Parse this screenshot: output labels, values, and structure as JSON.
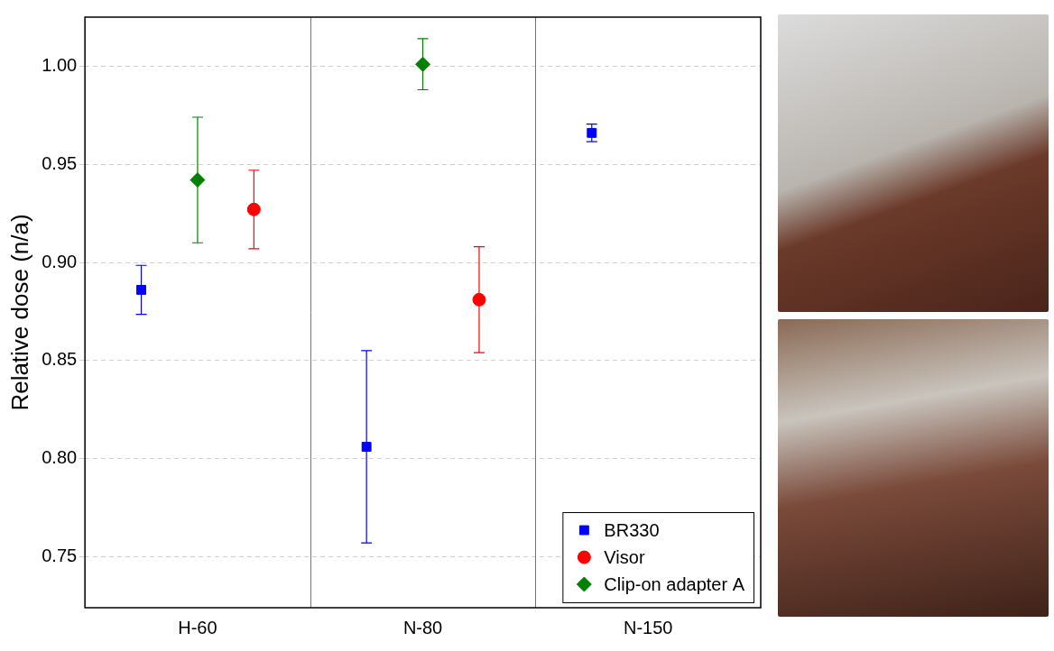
{
  "chart_data": {
    "type": "scatter",
    "y_label": "Relative dose (n/a)",
    "categories": [
      "H-60",
      "N-80",
      "N-150"
    ],
    "series": [
      {
        "name": "BR330",
        "color": "#0000ff",
        "marker": "square",
        "values": [
          0.886,
          0.806,
          0.966
        ],
        "errors": [
          0.0125,
          0.049,
          0.0045
        ]
      },
      {
        "name": "Visor",
        "color": "#ff0000",
        "marker": "circle",
        "values": [
          0.927,
          0.881,
          null
        ],
        "errors": [
          0.02,
          0.027,
          null
        ]
      },
      {
        "name": "Clip-on adapter A",
        "color": "#008000",
        "marker": "diamond",
        "values": [
          0.942,
          1.001,
          null
        ],
        "errors": [
          0.032,
          0.013,
          null
        ]
      }
    ],
    "ylim": [
      0.724,
      1.025
    ],
    "yticks": [
      0.75,
      {
        "value": 0.8,
        "label": "0.80"
      },
      0.85,
      {
        "value": 0.9,
        "label": "0.90"
      },
      0.95,
      {
        "value": 1.0,
        "label": "1.00"
      }
    ],
    "grid": true,
    "legend": "lower right"
  }
}
